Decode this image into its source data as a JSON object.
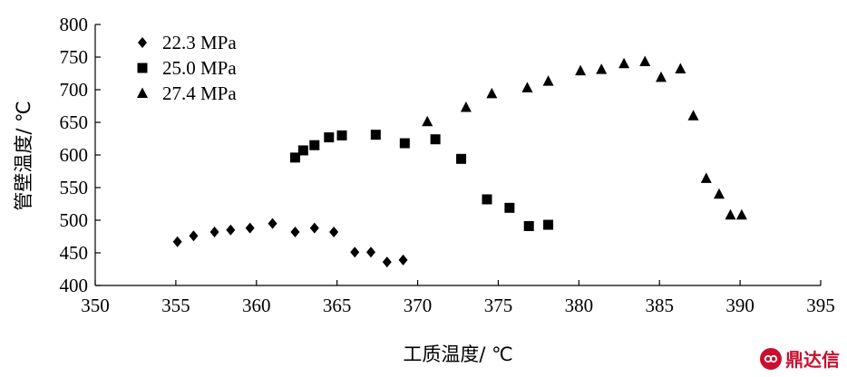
{
  "chart_data": {
    "type": "scatter",
    "xlabel": "工质温度/ ℃",
    "ylabel": "管壁温度/ ℃",
    "xlim": [
      350,
      395
    ],
    "ylim": [
      400,
      800
    ],
    "xticks": [
      "350",
      "355",
      "360",
      "365",
      "370",
      "375",
      "380",
      "385",
      "390",
      "395"
    ],
    "yticks": [
      "400",
      "450",
      "500",
      "550",
      "600",
      "650",
      "700",
      "750",
      "800"
    ],
    "grid": false,
    "legend_position": "top-left",
    "series": [
      {
        "name": "22.3 MPa",
        "marker": "diamond",
        "points": [
          [
            355.1,
            467
          ],
          [
            356.1,
            476
          ],
          [
            357.4,
            482
          ],
          [
            358.4,
            485
          ],
          [
            359.6,
            488
          ],
          [
            361.0,
            495
          ],
          [
            362.4,
            482
          ],
          [
            363.6,
            488
          ],
          [
            364.8,
            482
          ],
          [
            366.1,
            451
          ],
          [
            367.1,
            451
          ],
          [
            368.1,
            436
          ],
          [
            369.1,
            439
          ]
        ]
      },
      {
        "name": "25.0 MPa",
        "marker": "square",
        "points": [
          [
            362.4,
            596
          ],
          [
            362.9,
            607
          ],
          [
            363.6,
            615
          ],
          [
            364.5,
            627
          ],
          [
            365.3,
            630
          ],
          [
            367.4,
            631
          ],
          [
            369.2,
            618
          ],
          [
            371.1,
            624
          ],
          [
            372.7,
            594
          ],
          [
            374.3,
            532
          ],
          [
            375.7,
            519
          ],
          [
            376.9,
            491
          ],
          [
            378.1,
            493
          ]
        ]
      },
      {
        "name": "27.4 MPa",
        "marker": "triangle",
        "points": [
          [
            370.6,
            651
          ],
          [
            373.0,
            673
          ],
          [
            374.6,
            694
          ],
          [
            376.8,
            703
          ],
          [
            378.1,
            713
          ],
          [
            380.1,
            729
          ],
          [
            381.4,
            731
          ],
          [
            382.8,
            740
          ],
          [
            384.1,
            743
          ],
          [
            385.1,
            719
          ],
          [
            386.3,
            732
          ],
          [
            387.1,
            660
          ],
          [
            387.9,
            564
          ],
          [
            388.7,
            540
          ],
          [
            389.4,
            508
          ],
          [
            390.1,
            508
          ]
        ]
      }
    ]
  },
  "watermark": {
    "icon": "jujube-logo-icon",
    "text": "鼎达信",
    "color": "#c8102e"
  }
}
